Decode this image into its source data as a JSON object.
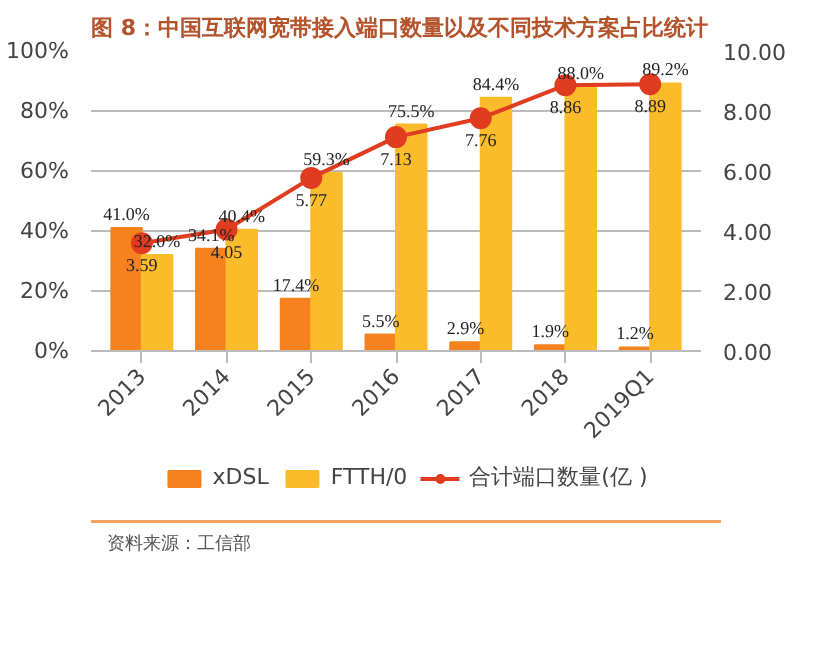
{
  "chart_data": {
    "type": "bar",
    "title": "图 8：中国互联网宽带接入端口数量以及不同技术方案占比统计",
    "categories": [
      "2013",
      "2014",
      "2015",
      "2016",
      "2017",
      "2018",
      "2019Q1"
    ],
    "series": [
      {
        "name": "xDSL",
        "type": "bar",
        "color": "#f5821f",
        "values": [
          41.0,
          34.1,
          17.4,
          5.5,
          2.9,
          1.9,
          1.2
        ],
        "value_labels": [
          "41.0%",
          "34.1%",
          "17.4%",
          "5.5%",
          "2.9%",
          "1.9%",
          "1.2%"
        ]
      },
      {
        "name": "FTTH/0",
        "type": "bar",
        "color": "#fbbc2c",
        "values": [
          32.0,
          40.4,
          59.3,
          75.5,
          84.4,
          88.0,
          89.2
        ],
        "value_labels": [
          "32.0%",
          "40.4%",
          "59.3%",
          "75.5%",
          "84.4%",
          "88.0%",
          "89.2%"
        ]
      },
      {
        "name": "合计端口数量(亿 )",
        "type": "line",
        "axis": "y2",
        "color": "#e03c1f",
        "marker": "circle",
        "values": [
          3.59,
          4.05,
          5.77,
          7.13,
          7.76,
          8.86,
          8.89
        ],
        "value_labels": [
          "3.59",
          "4.05",
          "5.77",
          "7.13",
          "7.76",
          "8.86",
          "8.89"
        ]
      }
    ],
    "ylim": [
      0,
      100
    ],
    "yticks": [
      {
        "value": 0,
        "label": "0%"
      },
      {
        "value": 20,
        "label": "20%"
      },
      {
        "value": 40,
        "label": "40%"
      },
      {
        "value": 60,
        "label": "60%"
      },
      {
        "value": 80,
        "label": "80%"
      },
      {
        "value": 100,
        "label": "100%"
      }
    ],
    "y2lim": [
      0,
      10
    ],
    "y2ticks": [
      {
        "value": 0,
        "label": "0.00"
      },
      {
        "value": 2,
        "label": "2.00"
      },
      {
        "value": 4,
        "label": "4.00"
      },
      {
        "value": 6,
        "label": "6.00"
      },
      {
        "value": 8,
        "label": "8.00"
      },
      {
        "value": 10,
        "label": "10.00"
      }
    ],
    "grid": "y",
    "legend": "bottom",
    "annotations": [
      "资料来源：工信部"
    ]
  }
}
